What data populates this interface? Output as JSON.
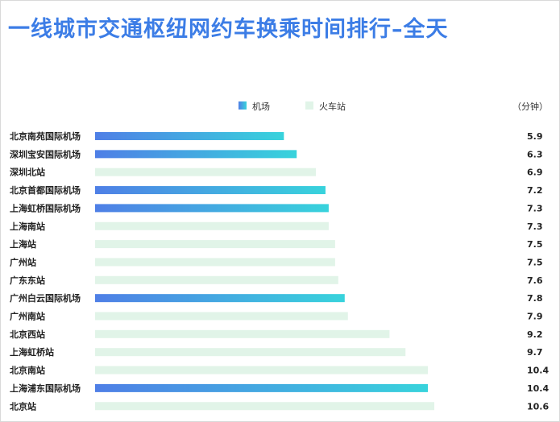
{
  "chart_data": {
    "type": "bar",
    "orientation": "horizontal",
    "title": "一线城市交通枢纽网约车换乘时间排行–全天",
    "unit": "（分钟）",
    "legend": [
      {
        "name": "机场",
        "color_start": "#4f7fe6",
        "color_end": "#38d3dc"
      },
      {
        "name": "火车站",
        "color": "#e1f4e8"
      }
    ],
    "xlim": [
      0,
      10.6
    ],
    "categories": [
      "北京南苑国际机场",
      "深圳宝安国际机场",
      "深圳北站",
      "北京首都国际机场",
      "上海虹桥国际机场",
      "上海南站",
      "上海站",
      "广州站",
      "广东东站",
      "广州白云国际机场",
      "广州南站",
      "北京西站",
      "上海虹桥站",
      "北京南站",
      "上海浦东国际机场",
      "北京站"
    ],
    "values": [
      5.9,
      6.3,
      6.9,
      7.2,
      7.3,
      7.3,
      7.5,
      7.5,
      7.6,
      7.8,
      7.9,
      9.2,
      9.7,
      10.4,
      10.4,
      10.6
    ],
    "value_labels": [
      "5.9",
      "6.3",
      "6.9",
      "7.2",
      "7.3",
      "7.3",
      "7.5",
      "7.5",
      "7.6",
      "7.8",
      "7.9",
      "9.2",
      "9.7",
      "10.4",
      "10.4",
      "10.6"
    ],
    "group": [
      "机场",
      "机场",
      "火车站",
      "机场",
      "机场",
      "火车站",
      "火车站",
      "火车站",
      "火车站",
      "机场",
      "火车站",
      "火车站",
      "火车站",
      "火车站",
      "机场",
      "火车站"
    ]
  }
}
